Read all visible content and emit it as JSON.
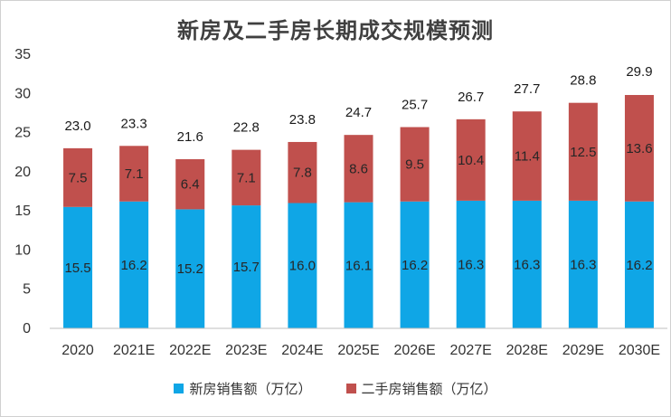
{
  "chart_data": {
    "type": "bar",
    "stacked": true,
    "title": "新房及二手房长期成交规模预测",
    "categories": [
      "2020",
      "2021E",
      "2022E",
      "2023E",
      "2024E",
      "2025E",
      "2026E",
      "2027E",
      "2028E",
      "2029E",
      "2030E"
    ],
    "series": [
      {
        "name": "新房销售额（万亿）",
        "color": "#0fa6e6",
        "values": [
          15.5,
          16.2,
          15.2,
          15.7,
          16.0,
          16.1,
          16.2,
          16.3,
          16.3,
          16.3,
          16.2
        ],
        "labels": [
          "15.5",
          "16.2",
          "15.2",
          "15.7",
          "16.0",
          "16.1",
          "16.2",
          "16.3",
          "16.3",
          "16.3",
          "16.2"
        ]
      },
      {
        "name": "二手房销售额（万亿）",
        "color": "#c0504d",
        "values": [
          7.5,
          7.1,
          6.4,
          7.1,
          7.8,
          8.6,
          9.5,
          10.4,
          11.4,
          12.5,
          13.6
        ],
        "labels": [
          "7.5",
          "7.1",
          "6.4",
          "7.1",
          "7.8",
          "8.6",
          "9.5",
          "10.4",
          "11.4",
          "12.5",
          "13.6"
        ]
      }
    ],
    "totals": [
      23.0,
      23.3,
      21.6,
      22.8,
      23.8,
      24.7,
      25.7,
      26.7,
      27.7,
      28.8,
      29.9
    ],
    "total_labels": [
      "23.0",
      "23.3",
      "21.6",
      "22.8",
      "23.8",
      "24.7",
      "25.7",
      "26.7",
      "27.7",
      "28.8",
      "29.9"
    ],
    "ylim": [
      0,
      35
    ],
    "yticks": [
      "0",
      "5",
      "10",
      "15",
      "20",
      "25",
      "30",
      "35"
    ],
    "grid": false,
    "legend_position": "bottom"
  }
}
